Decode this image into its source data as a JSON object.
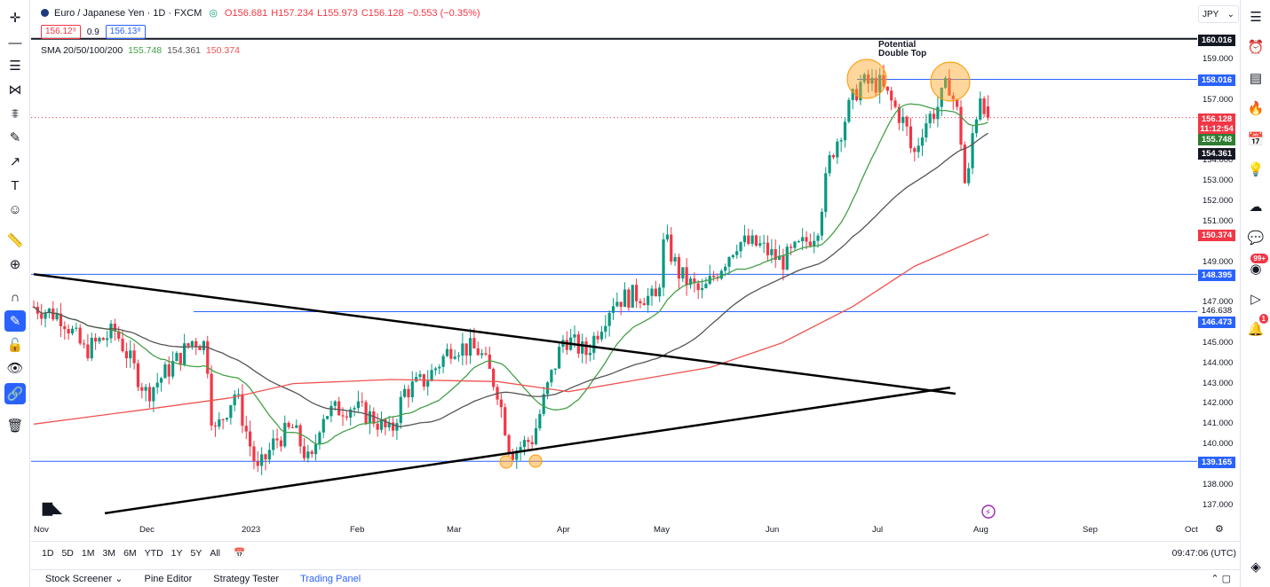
{
  "symbol": {
    "title": "Euro / Japanese Yen · 1D · FXCM",
    "open": "O156.681",
    "high": "H157.234",
    "low": "L155.973",
    "close": "C156.128",
    "change": "−0.553 (−0.35%)"
  },
  "trade": {
    "sell": "156.12⁹",
    "spread": "0.9",
    "buy": "156.13⁸"
  },
  "sma_legend": {
    "label": "SMA 20/50/100/200",
    "v20": "155.748",
    "v50": "154.361",
    "v100": "150.374"
  },
  "currency": "JPY",
  "annotation": {
    "line1": "Potential",
    "line2": "Double Top"
  },
  "price_axis": {
    "ticks": [
      "159.000",
      "157.000",
      "155.000",
      "154.000",
      "153.000",
      "152.000",
      "151.000",
      "149.000",
      "147.000",
      "145.000",
      "144.000",
      "143.000",
      "142.000",
      "141.000",
      "140.000",
      "138.000",
      "137.000"
    ],
    "tags": {
      "p160": "160.016",
      "p158": "158.016",
      "close": "156.128",
      "countdown": "11:12:54",
      "sma20": "155.748",
      "sma50": "154.361",
      "sma100": "150.374",
      "p148": "148.395",
      "p146a": "146.638",
      "p146b": "146.473",
      "p139": "139.165"
    }
  },
  "time_axis": [
    "Nov",
    "Dec",
    "2023",
    "Feb",
    "Mar",
    "Apr",
    "May",
    "Jun",
    "Jul",
    "Aug",
    "Sep",
    "Oct"
  ],
  "ranges": [
    "1D",
    "5D",
    "1M",
    "3M",
    "6M",
    "YTD",
    "1Y",
    "5Y",
    "All"
  ],
  "clock": "09:47:06 (UTC)",
  "bottom_tabs": [
    "Stock Screener",
    "Pine Editor",
    "Strategy Tester",
    "Trading Panel"
  ],
  "badges": {
    "ideas": "99+",
    "alerts": "1"
  },
  "colors": {
    "up": "#089981",
    "down": "#f23645",
    "sma20": "#43a047",
    "sma50": "#555555",
    "sma100": "#ef5350",
    "hline": "#2962ff",
    "accent": "#2962ff"
  },
  "chart_data": {
    "type": "candlestick",
    "instrument": "EUR/JPY",
    "timeframe": "1D",
    "ylim": [
      136.5,
      160.5
    ],
    "x_range": [
      "2022-10-31",
      "2023-10-31"
    ],
    "horizontal_levels": [
      160.016,
      158.016,
      148.395,
      146.638,
      146.473,
      139.165
    ],
    "trendlines": [
      {
        "from": [
          "2022-10-31",
          148.4
        ],
        "to": [
          "2023-07-31",
          142.5
        ]
      },
      {
        "from": [
          "2022-11-05",
          136.6
        ],
        "to": [
          "2023-07-29",
          142.8
        ]
      }
    ],
    "candles_sample": [
      {
        "date": "2023-06-28",
        "o": 157.6,
        "h": 158.0,
        "l": 157.1,
        "c": 157.9
      },
      {
        "date": "2023-07-21",
        "o": 157.2,
        "h": 158.0,
        "l": 156.8,
        "c": 157.9
      },
      {
        "date": "2023-07-28",
        "o": 155.0,
        "h": 155.4,
        "l": 151.4,
        "c": 153.9
      },
      {
        "date": "2023-08-03",
        "o": 156.681,
        "h": 157.234,
        "l": 155.973,
        "c": 156.128
      }
    ]
  }
}
